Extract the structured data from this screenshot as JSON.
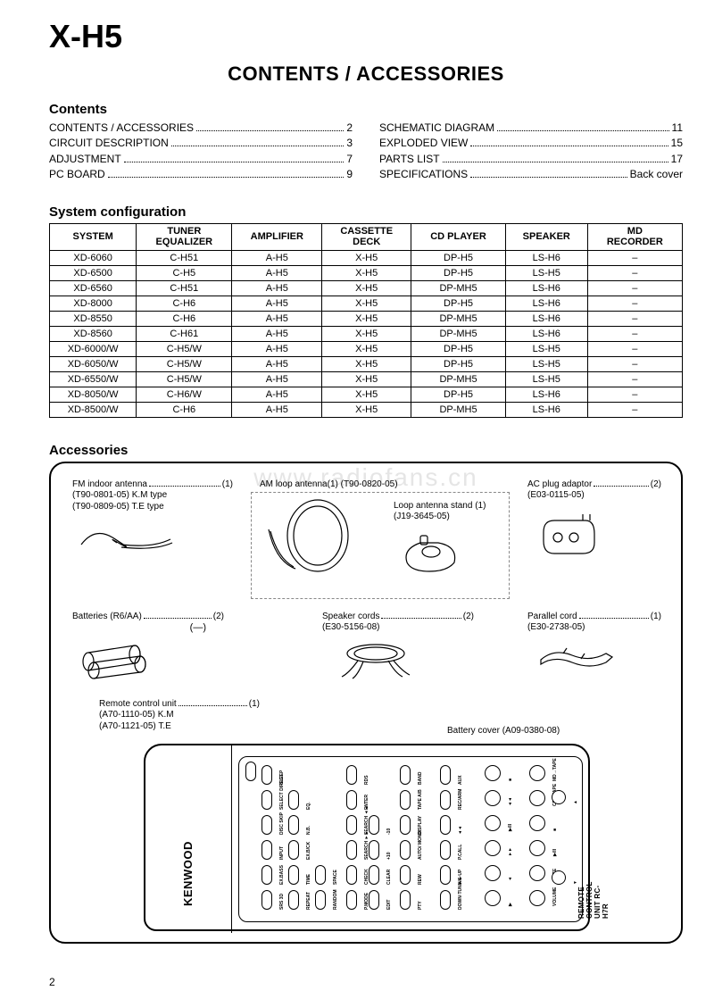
{
  "model": "X-H5",
  "main_heading": "CONTENTS / ACCESSORIES",
  "contents_heading": "Contents",
  "toc_left": [
    {
      "label": "CONTENTS / ACCESSORIES",
      "page": "2"
    },
    {
      "label": "CIRCUIT DESCRIPTION",
      "page": "3"
    },
    {
      "label": "ADJUSTMENT",
      "page": "7"
    },
    {
      "label": "PC BOARD",
      "page": "9"
    }
  ],
  "toc_right": [
    {
      "label": "SCHEMATIC DIAGRAM",
      "page": "11"
    },
    {
      "label": "EXPLODED VIEW",
      "page": "15"
    },
    {
      "label": "PARTS LIST",
      "page": "17"
    },
    {
      "label": "SPECIFICATIONS",
      "page": "Back cover"
    }
  ],
  "sysconf_heading": "System configuration",
  "sys_columns": [
    "SYSTEM",
    "TUNER / EQUALIZER",
    "AMPLIFIER",
    "CASSETTE DECK",
    "CD PLAYER",
    "SPEAKER",
    "MD RECORDER"
  ],
  "sys_rows": [
    [
      "XD-6060",
      "C-H51",
      "A-H5",
      "X-H5",
      "DP-H5",
      "LS-H6",
      "–"
    ],
    [
      "XD-6500",
      "C-H5",
      "A-H5",
      "X-H5",
      "DP-H5",
      "LS-H5",
      "–"
    ],
    [
      "XD-6560",
      "C-H51",
      "A-H5",
      "X-H5",
      "DP-MH5",
      "LS-H6",
      "–"
    ],
    [
      "XD-8000",
      "C-H6",
      "A-H5",
      "X-H5",
      "DP-H5",
      "LS-H6",
      "–"
    ],
    [
      "XD-8550",
      "C-H6",
      "A-H5",
      "X-H5",
      "DP-MH5",
      "LS-H6",
      "–"
    ],
    [
      "XD-8560",
      "C-H61",
      "A-H5",
      "X-H5",
      "DP-MH5",
      "LS-H6",
      "–"
    ],
    [
      "XD-6000/W",
      "C-H5/W",
      "A-H5",
      "X-H5",
      "DP-H5",
      "LS-H5",
      "–"
    ],
    [
      "XD-6050/W",
      "C-H5/W",
      "A-H5",
      "X-H5",
      "DP-H5",
      "LS-H5",
      "–"
    ],
    [
      "XD-6550/W",
      "C-H5/W",
      "A-H5",
      "X-H5",
      "DP-MH5",
      "LS-H5",
      "–"
    ],
    [
      "XD-8050/W",
      "C-H6/W",
      "A-H5",
      "X-H5",
      "DP-H5",
      "LS-H6",
      "–"
    ],
    [
      "XD-8500/W",
      "C-H6",
      "A-H5",
      "X-H5",
      "DP-MH5",
      "LS-H6",
      "–"
    ]
  ],
  "accessories_heading": "Accessories",
  "watermark": "www.radiofans.cn",
  "acc": {
    "fm": {
      "title": "FM indoor antenna",
      "qty": "(1)",
      "l1": "(T90-0801-05) K.M type",
      "l2": "(T90-0809-05) T.E type"
    },
    "am": {
      "title": "AM loop antenna(1) (T90-0820-05)"
    },
    "loop_stand": {
      "title": "Loop antenna stand (1)",
      "l1": "(J19-3645-05)"
    },
    "ac": {
      "title": "AC plug adaptor",
      "qty": "(2)",
      "l1": "(E03-0115-05)"
    },
    "batt": {
      "title": "Batteries (R6/AA)",
      "qty": "(2)",
      "minus": "(—)"
    },
    "spk": {
      "title": "Speaker cords",
      "qty": "(2)",
      "l1": "(E30-5156-08)"
    },
    "par": {
      "title": "Parallel cord",
      "qty": "(1)",
      "l1": "(E30-2738-05)"
    },
    "rcu": {
      "title": "Remote control unit",
      "qty": "(1)",
      "l1": "(A70-1110-05) K.M",
      "l2": "(A70-1121-05) T.E"
    },
    "battcover": {
      "title": "Battery cover (A09-0380-08)"
    }
  },
  "remote": {
    "brand": "KENWOOD",
    "model_line": "REMOTE CONTROL UNIT RC-H7R",
    "row_top": [
      "SLEEP",
      "SELECT DIRECT",
      "DISC SKIP",
      "INPUT",
      "EX.BASS",
      "SRS 3D"
    ],
    "row2": [
      "",
      "EQ.",
      "N.B.",
      "EX.B/CK",
      "TIME",
      "REPEAT"
    ],
    "row3": [
      "",
      "",
      "",
      "",
      "SPACE",
      "RANDOM"
    ],
    "row4": [
      "RDS",
      "ENTER",
      "SEARCH ◄◄",
      "SEARCH ►►",
      "CHECK",
      "P.MODE"
    ],
    "row4b": [
      "",
      "",
      "-10",
      "+10",
      "CLEAR",
      "EDIT"
    ],
    "row5": [
      "BAND",
      "TAPE A/B",
      "DISPLAY",
      "AUTO/ MONO",
      "REW",
      "PTY"
    ],
    "row6": [
      "AUX",
      "REC/ARM",
      "◄◄",
      "P.CALL",
      "►►",
      "DOWN·TUNING·UP"
    ],
    "row7_labels": [
      "TAPE",
      "CD"
    ],
    "row7": [
      "■",
      "◄◄",
      "▶/II",
      "►►",
      "◄",
      "▶"
    ],
    "row8": [
      "MD→TAPE",
      "CD→TAPE",
      "■",
      "▶/II",
      "MUTE",
      "VOLUME"
    ],
    "vol": [
      "▲",
      "▼"
    ]
  },
  "page_number": "2"
}
